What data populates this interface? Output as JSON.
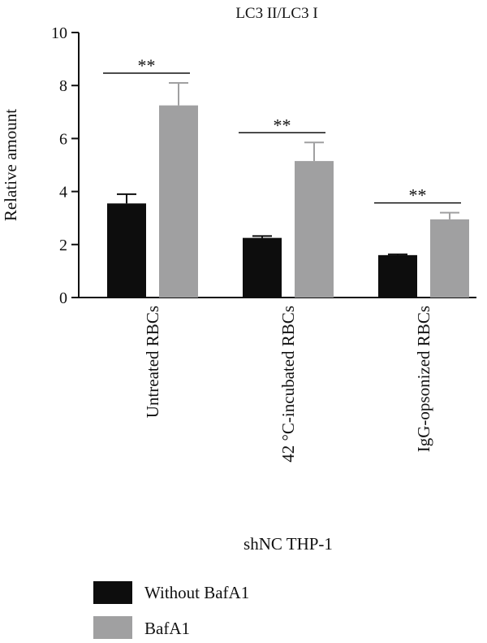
{
  "chart_data": {
    "type": "bar",
    "title": "LC3 II/LC3 I",
    "xlabel": "shNC THP-1",
    "ylabel": "Relative amount",
    "ylim": [
      0,
      10
    ],
    "yticks": [
      "0",
      "2",
      "4",
      "6",
      "8",
      "10"
    ],
    "categories": [
      "Untreated RBCs",
      "42 °C-incubated RBCs",
      "IgG-opsonized RBCs"
    ],
    "series": [
      {
        "name": "Without BafA1",
        "color": "#0d0d0d",
        "values": [
          3.55,
          2.25,
          1.6
        ],
        "errors": [
          0.35,
          0.07,
          0.03
        ]
      },
      {
        "name": "BafA1",
        "color": "#a0a0a1",
        "values": [
          7.25,
          5.15,
          2.95
        ],
        "errors": [
          0.85,
          0.7,
          0.25
        ]
      }
    ],
    "significance": [
      "**",
      "**",
      "**"
    ],
    "legend_position": "bottom-left"
  }
}
